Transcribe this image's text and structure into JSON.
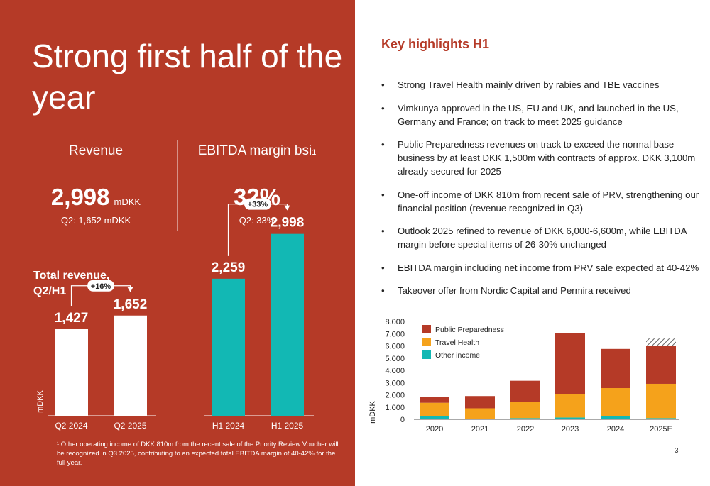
{
  "slide": {
    "title": "Strong first half of the year",
    "page_number": "3"
  },
  "kpis": {
    "revenue": {
      "label": "Revenue",
      "value": "2,998",
      "unit": "mDKK",
      "sub": "Q2: 1,652 mDKK"
    },
    "ebitda": {
      "label": "EBITDA margin bsi",
      "sup": "1",
      "value": "32%",
      "sub": "Q2: 33%"
    }
  },
  "total_revenue": {
    "label_line1": "Total revenue,",
    "label_line2": "Q2/H1",
    "unit_label": "mDKK"
  },
  "footnote": "¹ Other operating income of DKK 810m from the recent sale of the Priority Review Voucher will be recognized in Q3 2025, contributing to an expected total EBITDA margin of 40-42% for the full year.",
  "key_highlights": {
    "title": "Key highlights H1",
    "items": [
      "Strong Travel Health mainly driven by rabies and TBE vaccines",
      "Vimkunya approved in the US, EU and UK, and launched in the US, Germany and France; on track to meet 2025 guidance",
      "Public Preparedness revenues on track to exceed the normal base business by at least DKK 1,500m with contracts of approx. DKK 3,100m already secured for 2025",
      "One-off income of DKK 810m from recent sale of PRV, strengthening our financial position (revenue recognized in Q3)",
      "Outlook 2025 refined to revenue of DKK 6,000-6,600m, while EBITDA margin before special items of 26-30% unchanged",
      "EBITDA margin including net income from PRV sale expected at 40-42%",
      "Takeover offer from Nordic Capital and Permira received"
    ]
  },
  "colors": {
    "brand_red": "#b53a27",
    "teal": "#12b8b4",
    "orange": "#f5a21b",
    "white": "#ffffff"
  },
  "chart_data": [
    {
      "type": "bar",
      "categories": [
        "Q2 2024",
        "Q2 2025"
      ],
      "values": [
        1427,
        1652
      ],
      "value_labels": [
        "1,427",
        "1,652"
      ],
      "growth_label": "+16%",
      "ylabel": "mDKK",
      "bar_color": "#ffffff"
    },
    {
      "type": "bar",
      "categories": [
        "H1 2024",
        "H1 2025"
      ],
      "values": [
        2259,
        2998
      ],
      "value_labels": [
        "2,259",
        "2,998"
      ],
      "growth_label": "+33%",
      "bar_color": "#12b8b4"
    },
    {
      "type": "bar",
      "stacked": true,
      "categories": [
        "2020",
        "2021",
        "2022",
        "2023",
        "2024",
        "2025E"
      ],
      "series": [
        {
          "name": "Other income",
          "color": "#12b8b4",
          "values": [
            250,
            50,
            100,
            150,
            250,
            100
          ]
        },
        {
          "name": "Travel Health",
          "color": "#f5a21b",
          "values": [
            1100,
            850,
            1300,
            1900,
            2300,
            2800
          ]
        },
        {
          "name": "Public Preparedness",
          "color": "#b53a27",
          "values": [
            500,
            1000,
            1750,
            5000,
            3200,
            3100
          ]
        }
      ],
      "hatched_top": {
        "category": "2025E",
        "value": 600
      },
      "ylabel": "mDKK",
      "ylim": [
        0,
        8000
      ],
      "yticks": [
        0,
        1000,
        2000,
        3000,
        4000,
        5000,
        6000,
        7000,
        8000
      ],
      "ytick_labels": [
        "0",
        "1.000",
        "2.000",
        "3.000",
        "4.000",
        "5.000",
        "6.000",
        "7.000",
        "8.000"
      ],
      "legend": [
        "Public Preparedness",
        "Travel Health",
        "Other income"
      ],
      "legend_position": "top-left",
      "grid": false
    }
  ]
}
